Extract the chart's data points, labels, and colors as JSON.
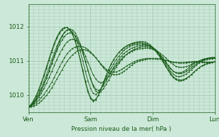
{
  "background_color": "#cce8d8",
  "plot_bg_color": "#cce8d8",
  "line_color": "#1a5c1a",
  "marker_color": "#1a5c1a",
  "grid_color": "#99c4aa",
  "tick_color": "#1a5c1a",
  "text_color": "#1a5c1a",
  "xlabel": "Pression niveau de la mer( hPa )",
  "yticks": [
    1010,
    1011,
    1012
  ],
  "ylim": [
    1009.5,
    1012.65
  ],
  "xlim": [
    0,
    72
  ],
  "xtick_positions": [
    0,
    24,
    48,
    72
  ],
  "xtick_labels": [
    "Ven",
    "Sam",
    "Dim",
    "Lun"
  ],
  "series": [
    [
      1009.65,
      1009.68,
      1009.72,
      1009.78,
      1009.85,
      1009.93,
      1010.02,
      1010.13,
      1010.25,
      1010.38,
      1010.52,
      1010.67,
      1010.83,
      1010.97,
      1011.1,
      1011.21,
      1011.3,
      1011.36,
      1011.4,
      1011.42,
      1011.42,
      1011.41,
      1011.38,
      1011.33,
      1011.26,
      1011.18,
      1011.09,
      1010.99,
      1010.89,
      1010.8,
      1010.72,
      1010.66,
      1010.62,
      1010.6,
      1010.6,
      1010.62,
      1010.65,
      1010.7,
      1010.76,
      1010.82,
      1010.88,
      1010.93,
      1010.97,
      1011.0,
      1011.02,
      1011.04,
      1011.05,
      1011.06,
      1011.06,
      1011.06,
      1011.06,
      1011.05,
      1011.04,
      1011.02,
      1011.0,
      1010.98,
      1010.96,
      1010.95,
      1010.95,
      1010.95,
      1010.95,
      1010.96,
      1010.97,
      1010.97,
      1010.98,
      1010.98,
      1010.97,
      1010.96,
      1010.95,
      1010.95,
      1010.95,
      1010.96,
      1010.97
    ],
    [
      1009.65,
      1009.7,
      1009.78,
      1009.88,
      1010.0,
      1010.15,
      1010.32,
      1010.51,
      1010.71,
      1010.93,
      1011.15,
      1011.36,
      1011.56,
      1011.71,
      1011.83,
      1011.9,
      1011.93,
      1011.9,
      1011.82,
      1011.68,
      1011.5,
      1011.27,
      1011.0,
      1010.73,
      1010.47,
      1010.26,
      1010.12,
      1010.07,
      1010.1,
      1010.19,
      1010.31,
      1010.44,
      1010.57,
      1010.7,
      1010.82,
      1010.93,
      1011.03,
      1011.12,
      1011.19,
      1011.25,
      1011.3,
      1011.34,
      1011.37,
      1011.39,
      1011.41,
      1011.42,
      1011.41,
      1011.39,
      1011.35,
      1011.3,
      1011.23,
      1011.15,
      1011.06,
      1010.96,
      1010.86,
      1010.77,
      1010.7,
      1010.66,
      1010.65,
      1010.66,
      1010.69,
      1010.74,
      1010.8,
      1010.86,
      1010.92,
      1010.96,
      1011.0,
      1011.03,
      1011.06,
      1011.06,
      1011.06,
      1011.06,
      1011.07
    ],
    [
      1009.65,
      1009.71,
      1009.8,
      1009.92,
      1010.06,
      1010.22,
      1010.4,
      1010.6,
      1010.81,
      1011.03,
      1011.23,
      1011.43,
      1011.6,
      1011.74,
      1011.84,
      1011.9,
      1011.9,
      1011.84,
      1011.71,
      1011.52,
      1011.28,
      1011.0,
      1010.7,
      1010.42,
      1010.2,
      1010.06,
      1010.02,
      1010.07,
      1010.18,
      1010.33,
      1010.49,
      1010.65,
      1010.79,
      1010.92,
      1011.04,
      1011.14,
      1011.23,
      1011.31,
      1011.37,
      1011.41,
      1011.45,
      1011.47,
      1011.48,
      1011.49,
      1011.48,
      1011.48,
      1011.46,
      1011.42,
      1011.37,
      1011.31,
      1011.22,
      1011.13,
      1011.02,
      1010.91,
      1010.8,
      1010.69,
      1010.61,
      1010.56,
      1010.54,
      1010.55,
      1010.58,
      1010.62,
      1010.68,
      1010.74,
      1010.81,
      1010.88,
      1010.94,
      1011.0,
      1011.04,
      1011.07,
      1011.09,
      1011.1,
      1011.1
    ],
    [
      1009.65,
      1009.7,
      1009.77,
      1009.87,
      1010.0,
      1010.14,
      1010.31,
      1010.5,
      1010.7,
      1010.91,
      1011.11,
      1011.3,
      1011.47,
      1011.61,
      1011.72,
      1011.79,
      1011.82,
      1011.8,
      1011.73,
      1011.61,
      1011.44,
      1011.22,
      1010.97,
      1010.72,
      1010.49,
      1010.3,
      1010.18,
      1010.14,
      1010.18,
      1010.28,
      1010.41,
      1010.55,
      1010.69,
      1010.82,
      1010.94,
      1011.05,
      1011.14,
      1011.22,
      1011.28,
      1011.33,
      1011.37,
      1011.4,
      1011.43,
      1011.44,
      1011.45,
      1011.46,
      1011.45,
      1011.43,
      1011.39,
      1011.34,
      1011.27,
      1011.18,
      1011.09,
      1010.98,
      1010.87,
      1010.78,
      1010.7,
      1010.65,
      1010.63,
      1010.63,
      1010.65,
      1010.69,
      1010.74,
      1010.8,
      1010.86,
      1010.91,
      1010.96,
      1010.99,
      1011.02,
      1011.04,
      1011.06,
      1011.07,
      1011.08
    ],
    [
      1009.65,
      1009.72,
      1009.83,
      1009.97,
      1010.14,
      1010.34,
      1010.55,
      1010.78,
      1011.02,
      1011.25,
      1011.47,
      1011.65,
      1011.8,
      1011.9,
      1011.96,
      1011.97,
      1011.91,
      1011.79,
      1011.6,
      1011.36,
      1011.06,
      1010.74,
      1010.42,
      1010.14,
      1009.94,
      1009.85,
      1009.88,
      1010.0,
      1010.17,
      1010.37,
      1010.56,
      1010.74,
      1010.9,
      1011.04,
      1011.15,
      1011.25,
      1011.33,
      1011.39,
      1011.44,
      1011.48,
      1011.51,
      1011.53,
      1011.55,
      1011.56,
      1011.56,
      1011.55,
      1011.52,
      1011.47,
      1011.4,
      1011.31,
      1011.21,
      1011.09,
      1010.97,
      1010.84,
      1010.72,
      1010.6,
      1010.51,
      1010.45,
      1010.42,
      1010.42,
      1010.44,
      1010.48,
      1010.54,
      1010.6,
      1010.67,
      1010.74,
      1010.8,
      1010.85,
      1010.88,
      1010.91,
      1010.93,
      1010.95,
      1010.97
    ],
    [
      1009.65,
      1009.69,
      1009.75,
      1009.83,
      1009.94,
      1010.06,
      1010.2,
      1010.35,
      1010.52,
      1010.69,
      1010.87,
      1011.04,
      1011.2,
      1011.34,
      1011.46,
      1011.55,
      1011.61,
      1011.63,
      1011.61,
      1011.55,
      1011.45,
      1011.31,
      1011.14,
      1010.96,
      1010.77,
      1010.6,
      1010.47,
      1010.39,
      1010.36,
      1010.39,
      1010.46,
      1010.56,
      1010.67,
      1010.78,
      1010.88,
      1010.98,
      1011.06,
      1011.13,
      1011.19,
      1011.24,
      1011.28,
      1011.31,
      1011.33,
      1011.35,
      1011.36,
      1011.37,
      1011.37,
      1011.36,
      1011.34,
      1011.31,
      1011.27,
      1011.22,
      1011.16,
      1011.09,
      1011.02,
      1010.95,
      1010.89,
      1010.84,
      1010.82,
      1010.81,
      1010.82,
      1010.83,
      1010.86,
      1010.9,
      1010.94,
      1010.97,
      1011.0,
      1011.03,
      1011.05,
      1011.07,
      1011.08,
      1011.09,
      1011.1
    ],
    [
      1009.65,
      1009.73,
      1009.85,
      1010.0,
      1010.18,
      1010.38,
      1010.6,
      1010.84,
      1011.08,
      1011.31,
      1011.52,
      1011.7,
      1011.84,
      1011.93,
      1011.97,
      1011.97,
      1011.9,
      1011.77,
      1011.57,
      1011.32,
      1011.02,
      1010.69,
      1010.37,
      1010.09,
      1009.9,
      1009.82,
      1009.86,
      1009.99,
      1010.17,
      1010.37,
      1010.57,
      1010.75,
      1010.91,
      1011.04,
      1011.15,
      1011.25,
      1011.32,
      1011.38,
      1011.43,
      1011.46,
      1011.49,
      1011.51,
      1011.52,
      1011.53,
      1011.52,
      1011.51,
      1011.48,
      1011.44,
      1011.38,
      1011.3,
      1011.21,
      1011.1,
      1010.99,
      1010.86,
      1010.74,
      1010.63,
      1010.54,
      1010.48,
      1010.45,
      1010.44,
      1010.46,
      1010.49,
      1010.54,
      1010.6,
      1010.67,
      1010.74,
      1010.8,
      1010.85,
      1010.89,
      1010.92,
      1010.94,
      1010.96,
      1010.98
    ],
    [
      1009.65,
      1009.66,
      1009.68,
      1009.72,
      1009.77,
      1009.83,
      1009.91,
      1010.0,
      1010.1,
      1010.21,
      1010.34,
      1010.47,
      1010.61,
      1010.74,
      1010.87,
      1010.99,
      1011.09,
      1011.17,
      1011.24,
      1011.29,
      1011.32,
      1011.33,
      1011.32,
      1011.29,
      1011.24,
      1011.17,
      1011.09,
      1011.0,
      1010.91,
      1010.83,
      1010.76,
      1010.71,
      1010.68,
      1010.67,
      1010.68,
      1010.71,
      1010.75,
      1010.8,
      1010.85,
      1010.9,
      1010.94,
      1010.98,
      1011.01,
      1011.03,
      1011.05,
      1011.06,
      1011.07,
      1011.07,
      1011.07,
      1011.07,
      1011.06,
      1011.05,
      1011.04,
      1011.02,
      1011.0,
      1010.98,
      1010.96,
      1010.95,
      1010.94,
      1010.94,
      1010.94,
      1010.94,
      1010.95,
      1010.96,
      1010.97,
      1010.97,
      1010.97,
      1010.97,
      1010.96,
      1010.96,
      1010.96,
      1010.96,
      1010.97
    ]
  ]
}
